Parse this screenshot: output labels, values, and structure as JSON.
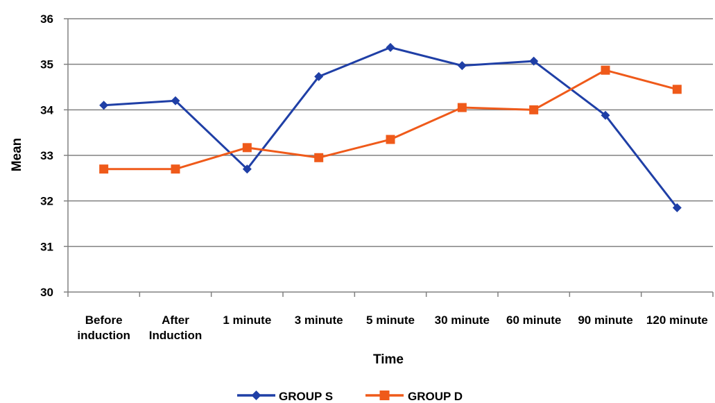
{
  "chart_data": {
    "type": "line",
    "xlabel": "Time",
    "ylabel": "Mean",
    "ylim": [
      30,
      36
    ],
    "yticks": [
      30,
      31,
      32,
      33,
      34,
      35,
      36
    ],
    "grid": true,
    "legend_position": "bottom",
    "categories": [
      [
        "Before",
        "induction"
      ],
      [
        "After",
        "Induction"
      ],
      [
        "1 minute"
      ],
      [
        "3 minute"
      ],
      [
        "5 minute"
      ],
      [
        "30 minute"
      ],
      [
        "60 minute"
      ],
      [
        "90 minute"
      ],
      [
        "120 minute"
      ]
    ],
    "series": [
      {
        "name": "GROUP S",
        "color": "#1f3fa6",
        "marker": "diamond",
        "values": [
          34.1,
          34.2,
          32.7,
          34.73,
          35.37,
          34.97,
          35.07,
          33.88,
          31.85
        ]
      },
      {
        "name": "GROUP D",
        "color": "#ef5a1a",
        "marker": "square",
        "values": [
          32.7,
          32.7,
          33.17,
          32.95,
          33.35,
          34.05,
          34.0,
          34.87,
          34.45
        ]
      }
    ]
  }
}
